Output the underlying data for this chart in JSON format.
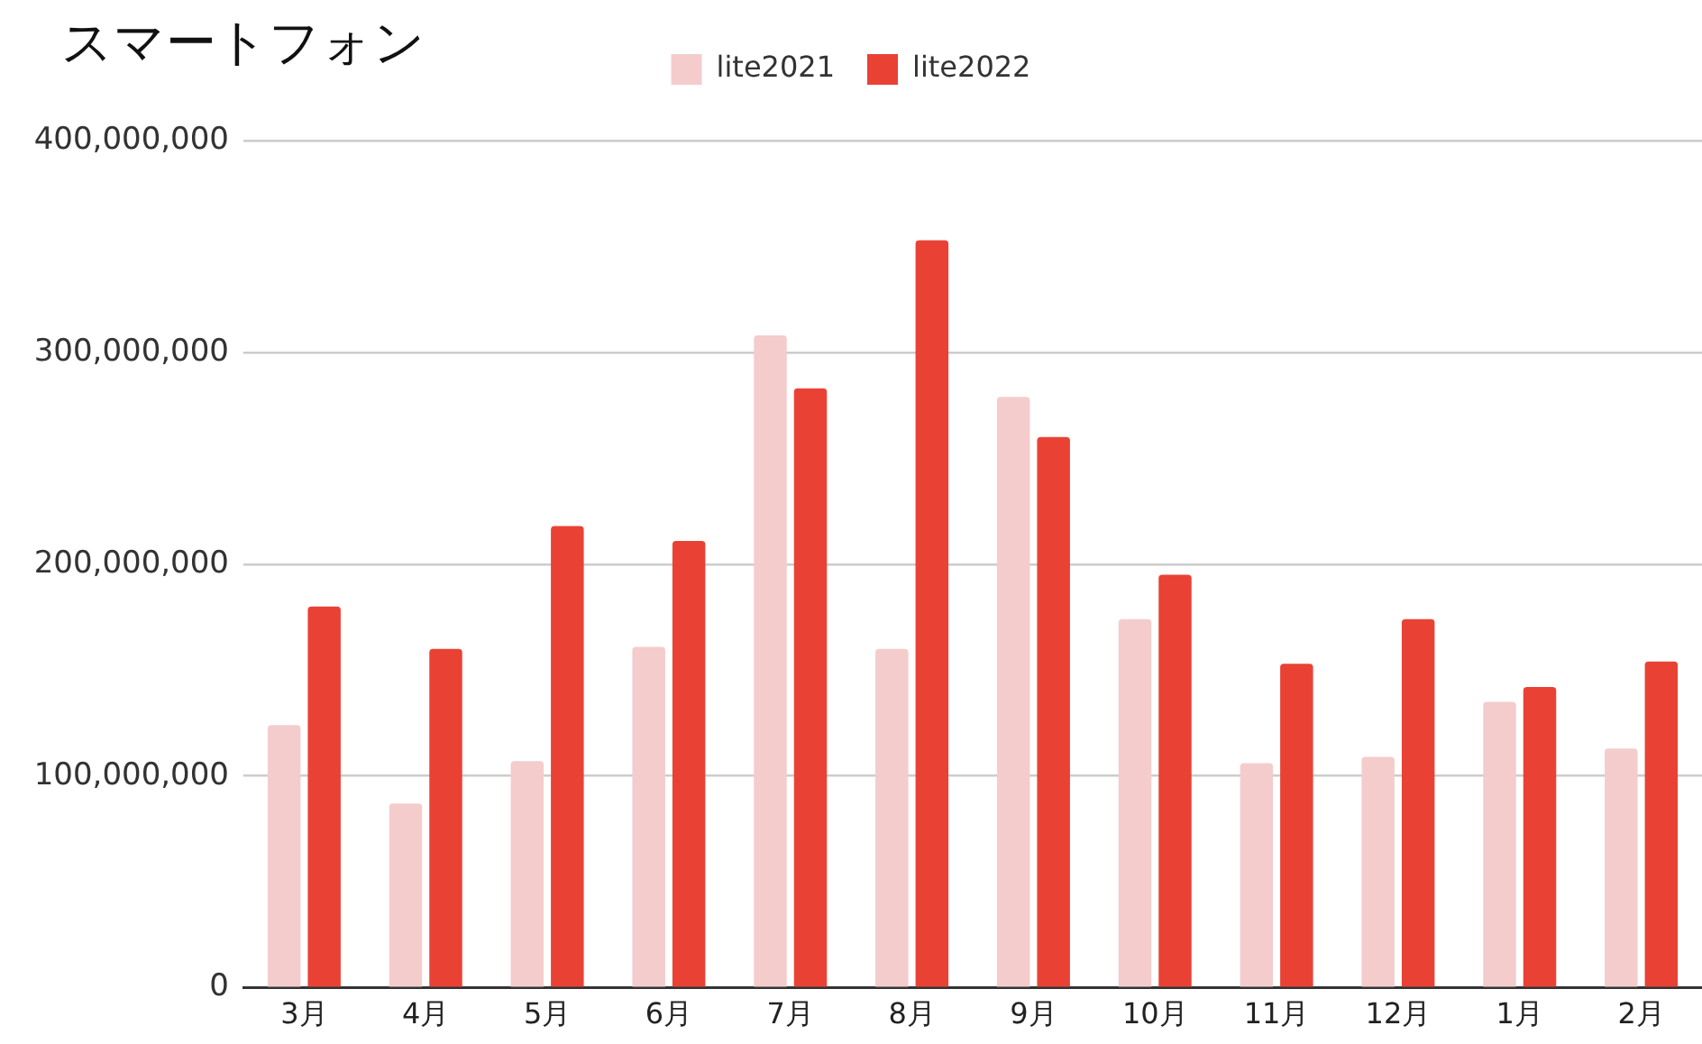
{
  "chart_data": {
    "type": "bar",
    "title": "スマートフォン",
    "categories": [
      "3月",
      "4月",
      "5月",
      "6月",
      "7月",
      "8月",
      "9月",
      "10月",
      "11月",
      "12月",
      "1月",
      "2月"
    ],
    "series": [
      {
        "name": "lite2021",
        "color": "#f4cccc",
        "values": [
          124000000,
          87000000,
          107000000,
          161000000,
          308000000,
          160000000,
          279000000,
          174000000,
          106000000,
          109000000,
          135000000,
          113000000
        ]
      },
      {
        "name": "lite2022",
        "color": "#e94235",
        "values": [
          180000000,
          160000000,
          218000000,
          211000000,
          283000000,
          353000000,
          260000000,
          195000000,
          153000000,
          174000000,
          142000000,
          154000000
        ]
      }
    ],
    "ylim": [
      0,
      400000000
    ],
    "yticks": [
      {
        "value": 0,
        "label": "0"
      },
      {
        "value": 100000000,
        "label": "100,000,000"
      },
      {
        "value": 200000000,
        "label": "200,000,000"
      },
      {
        "value": 300000000,
        "label": "300,000,000"
      },
      {
        "value": 400000000,
        "label": "400,000,000"
      }
    ],
    "grid": "y",
    "legend": "top"
  }
}
